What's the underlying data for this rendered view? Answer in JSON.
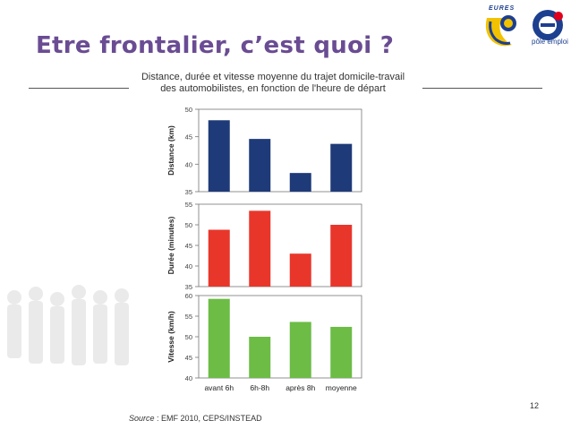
{
  "slide": {
    "title": "Etre frontalier, c’est quoi ?",
    "page_number": "12",
    "source_prefix": "Source",
    "source_text": " : EMF 2010, CEPS/INSTEAD"
  },
  "logos": {
    "eures": "EURES",
    "pole_emploi": "pôle emploi"
  },
  "chart_data": {
    "type": "bar",
    "title": "Distance, durée et vitesse moyenne du trajet domicile-travail des automobilistes, en fonction de l'heure de départ",
    "title_lines": [
      "Distance, durée et vitesse moyenne du trajet domicile-travail",
      "des automobilistes, en fonction de l'heure de départ"
    ],
    "categories": [
      "avant 6h",
      "6h-8h",
      "après 8h",
      "moyenne"
    ],
    "grid": false,
    "panels": [
      {
        "ylabel": "Distance (km)",
        "ylim": [
          35,
          50
        ],
        "yticks": [
          35,
          40,
          45,
          50
        ],
        "color": "#1f3a78",
        "values": [
          48.0,
          44.6,
          38.4,
          43.7
        ]
      },
      {
        "ylabel": "Durée (minutes)",
        "ylim": [
          35,
          55
        ],
        "yticks": [
          35,
          40,
          45,
          50,
          55
        ],
        "color": "#e8362b",
        "values": [
          48.8,
          53.4,
          43.0,
          50.0
        ]
      },
      {
        "ylabel": "Vitesse (km/h)",
        "ylim": [
          40,
          60
        ],
        "yticks": [
          40,
          45,
          50,
          55,
          60
        ],
        "color": "#6cbc46",
        "values": [
          59.2,
          50.0,
          53.6,
          52.4
        ]
      }
    ]
  }
}
